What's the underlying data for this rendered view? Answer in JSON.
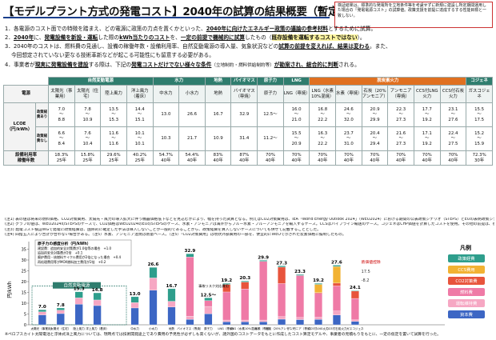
{
  "title": "【モデルプラント方式の発電コスト】2040年の試算の結果概要（暫定）",
  "note_box": "検証結果は、標準的な発電所を立地条件等を考慮せずに新規に建設し所定期間運用した場合の「発電電源コスト」の試算値。政策支援を前提に達成するする性能目標と一致しない。",
  "body": {
    "l1": "1．各電源のコスト面での特徴を踏まえ、どの電源に政策の力点を置くかといった、",
    "l1u": "2040年に向けたエネルギー政策の議論の参考材料",
    "l1e": "とするために試算。",
    "l2a": "2．",
    "l2b": "2040年",
    "l2c": "に、",
    "l2d": "発電設備を新設・運転",
    "l2e": "した際の",
    "l2f": "kWh当たりのコスト",
    "l2g": "を、",
    "l2h": "一定の前提で機械的に試算",
    "l2i": "したもの（",
    "l2j": "既存設備を運転するコストではない",
    "l2k": "）。",
    "l3a": "3．2040年のコストは、燃料費の見通し、設備の稼働年数・設備利用率、自然変動電源の導入量、気象状況などの",
    "l3b": "試算の前提を変えれば、結果は変わる",
    "l3c": "。また、",
    "l3d": "今回想定されていない更なる技術革新などが起こる可能性にも留意する必要がある。",
    "l4a": "4．事業者が",
    "l4b": "現実に発電設備を建設",
    "l4c": "する際は、下記の",
    "l4d": "発電コストだけでない様々な条件",
    "l4e": "（立地制約・燃料供給制約等）",
    "l4f": "が勘案され、総合的に判断",
    "l4g": "される。"
  },
  "table": {
    "groups": [
      "自然変動電源",
      "水力",
      "地熱",
      "バイオマス",
      "原子力",
      "LNG",
      "脱炭素火力",
      "コジェネ"
    ],
    "row_label": "電源",
    "columns": [
      "太陽光（事業用）",
      "太陽光（住宅）",
      "陸上風力",
      "洋上風力（着床）",
      "中水力",
      "小水力",
      "地熱",
      "バイオマス（専焼）",
      "原子力",
      "LNG（専焼）",
      "LNG（水素10%混焼）",
      "水素（専焼）",
      "石炭（20%アンモニア）",
      "アンモニア（専焼）",
      "CCS付LNG火力",
      "CCS付石炭火力",
      "ガスコジェネ"
    ],
    "lcoe_label": "LCOE（円/kWh）",
    "sub1": "政策経費あり",
    "sub2": "政策経費なし",
    "with_policy": [
      "7.0\n〜\n8.8",
      "7.8\n〜\n10.9",
      "13.5\n〜\n15.3",
      "14.4\n〜\n15.1",
      "13.0",
      "26.6",
      "16.7",
      "32.9",
      "12.5〜",
      "16.0\n〜\n21.0",
      "16.8\n〜\n22.2",
      "24.6\n〜\n32.0",
      "20.9\n〜\n29.9",
      "22.3\n〜\n27.3",
      "17.7\n〜\n19.2",
      "23.1\n〜\n27.6",
      "15.5\n〜\n17.5"
    ],
    "without_policy": [
      "6.6\n〜\n8.4",
      "7.6\n〜\n10.4",
      "11.6\n〜\n11.6",
      "10.1\n〜\n10.1",
      "10.3",
      "21.7",
      "10.9",
      "31.4",
      "11.2〜",
      "15.5\n〜\n20.9",
      "16.3\n〜\n22.2",
      "23.7\n〜\n31.0",
      "20.4\n〜\n29.4",
      "21.6\n〜\n27.3",
      "17.1\n〜\n19.2",
      "22.4\n〜\n27.5",
      "15.2\n〜\n15.9"
    ],
    "rate_label": "設備利用率\n稼働年数",
    "rates": [
      "18.3%\n25年",
      "15.8%\n25年",
      "29.6%\n25年",
      "40.2%\n25年",
      "54.7%\n40年",
      "54.4%\n40年",
      "83%\n40年",
      "87%\n40年",
      "70%\n40年",
      "70%\n40年",
      "70%\n40年",
      "70%\n40年",
      "70%\n40年",
      "70%\n40年",
      "70%\n40年",
      "70%\n40年",
      "72.3%\n30年"
    ]
  },
  "notes": [
    "(注1) 表の値は将来の燃料価格、CO2対策費用、太陽光・風力の導入拡大に伴う機器価格低下などを見込むかにより、幅を持った試算となる。例えばCO2対策費用は、IEA「World Energy Outlook 2024」（WEO2024）における期間の公表政策シナリオ（STEPS）とEUの表明政策シナリオ（APS）で幅を取っている。",
    "(注2) グラフの値は、WEO2024のSTEPSのケースで、CO2価格はWEO2024のEUのSTEPSのケース、水素・アンモニアは海外からブルー水素・ブルーアンモニアを輸入するケース。CCSはパイプライン輸送のケース。コジェネはCHP価値を計算したコストを使用。その他の前提は、後述の、各電源ごとの「発電コストの内訳（グラフ）」のとおり。",
    "(注3) 発電コスト検証WGで発電に政策経費は、国際的に確定した手法は導入しないことが一般的であることから、政策経費を算入しないケースについても併せて記載することとした。",
    "(注4) 四捨五入により合計が合わない場合がある。（注5）水素、アンモニア混焼は熱量ベース。（注5）「CO2対策費用」は現状外部費用の一部を、便宜的にWEOで示された炭素価格に擬制したもの。"
  ],
  "chart": {
    "ylabel": "円/kWh",
    "nat_label": "自然変動電源",
    "box_title": "原子力の感度分析（円/kWh）",
    "box_lines": [
      "建設費：追加的安全対策費が1.0倍等の場合　+1.0",
      "追加的安全対策費が2倍　+0.1",
      "廃炉費用・核燃料サイクル費用が2倍になった場合　+0.4",
      "再処理費用等がMOX燃料加工費用が2倍　+0.2"
    ],
    "legend_title": "凡例",
    "legend": [
      "政策経費",
      "CCS費用",
      "CO2対策費",
      "燃料費",
      "運転維持費",
      "資本費"
    ],
    "legend_colors": [
      "#2e9e8c",
      "#f2b233",
      "#e8543c",
      "#ef7aa6",
      "#f6a7c3",
      "#3c66c4"
    ],
    "side_note": "熱価値控除",
    "side_vals": [
      "17.5",
      "-8.2"
    ],
    "accident_label": "事故リスク対応費用",
    "bars": [
      {
        "name": "太陽光（事業用）",
        "total": "7.0",
        "parts": [
          4.6,
          1.4,
          0,
          0,
          0,
          1.0
        ]
      },
      {
        "name": "太陽光（住宅）",
        "total": "7.8",
        "parts": [
          5.2,
          1.6,
          0,
          0,
          0,
          1.0
        ]
      },
      {
        "name": "陸上風力",
        "total": "15.3",
        "parts": [
          9.5,
          3.0,
          0,
          0,
          0,
          2.8
        ]
      },
      {
        "name": "洋上風力（着床）",
        "total": "14.8",
        "parts": [
          8.9,
          2.6,
          0,
          0,
          0,
          3.3
        ]
      },
      {
        "name": "中水力",
        "total": "13.0",
        "parts": [
          7.8,
          2.5,
          0,
          0,
          0,
          2.7
        ]
      },
      {
        "name": "小水力",
        "total": "26.6",
        "parts": [
          16.0,
          5.7,
          0,
          0,
          0,
          4.9
        ]
      },
      {
        "name": "地熱",
        "total": "16.7",
        "parts": [
          8.2,
          2.7,
          0,
          0,
          0,
          5.8
        ]
      },
      {
        "name": "バイオマス（専焼）",
        "total": "32.9",
        "parts": [
          2.5,
          1.5,
          0,
          0,
          27.4,
          1.5
        ]
      },
      {
        "name": "原子力",
        "total": "12.5〜",
        "parts": [
          5.1,
          3.4,
          0,
          0,
          2.7,
          1.3
        ]
      },
      {
        "name": "LNG（専焼）",
        "total": "19.2",
        "parts": [
          1.4,
          0.8,
          0,
          3.5,
          13.0,
          0.5
        ]
      },
      {
        "name": "LNG（水素10%混焼）",
        "total": "20.3",
        "parts": [
          1.4,
          0.8,
          0,
          3.2,
          14.4,
          0.5
        ]
      },
      {
        "name": "水素（専焼）",
        "total": "29.9",
        "parts": [
          1.4,
          0.8,
          0,
          0,
          27.2,
          0.5
        ]
      },
      {
        "name": "石炭（20%アンモニア）",
        "total": "27.3",
        "parts": [
          2.6,
          1.2,
          0,
          7.6,
          15.3,
          0.6
        ]
      },
      {
        "name": "アンモニア（専焼）",
        "total": "23.3",
        "parts": [
          2.4,
          1.0,
          0,
          0,
          19.4,
          0.5
        ]
      },
      {
        "name": "CCS付LNG火力",
        "total": "19.2",
        "parts": [
          2.5,
          1.0,
          3.8,
          0.4,
          11.0,
          0.5
        ]
      },
      {
        "name": "CCS付石炭火力",
        "total": "27.6",
        "parts": [
          4.5,
          1.9,
          7.7,
          1.3,
          11.6,
          0.6
        ]
      },
      {
        "name": "ガスコジェネ",
        "total": "24.1",
        "parts": [
          1.6,
          0.7,
          0,
          3.4,
          9.9,
          0.3
        ]
      }
    ]
  },
  "bottom_note": "※ペロブスカイト太陽電池と浮体式洋上風力については、現時点では技術開発途上であり費用の予見性が必ずしも高くないが、諸外国のコストデータをもとに作成したコスト算定モデルや、事業者の見積もりをもとに、一定の仮定を置いて試算を行った。"
}
